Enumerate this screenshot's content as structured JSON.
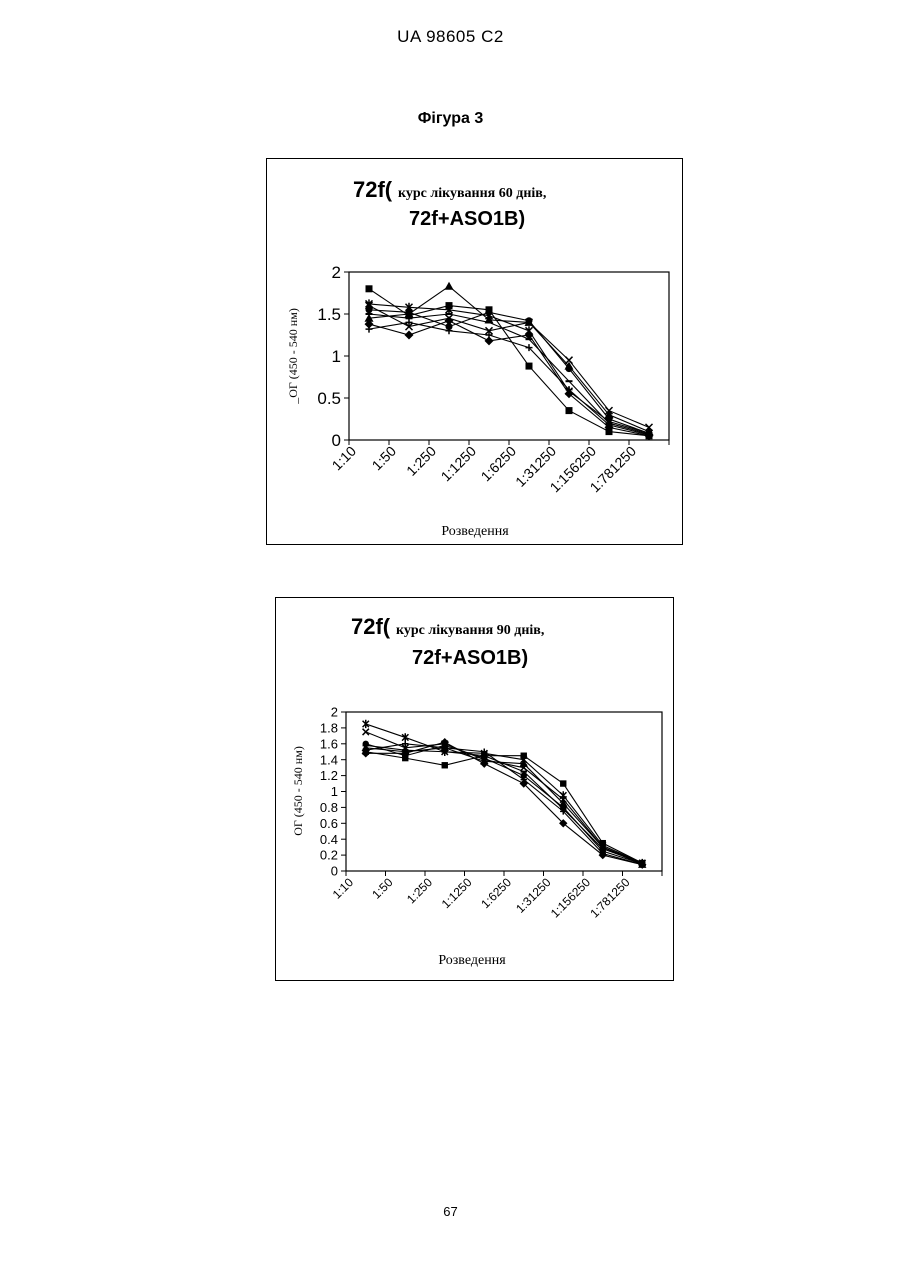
{
  "header": "UA   98605   C2",
  "figure_title": "Фігура 3",
  "page_number": "67",
  "chart_data": [
    {
      "type": "line",
      "title_main": "72f(",
      "title_rest": "курс лікування 60 днів,",
      "title_line2": "72f+ASO1B)",
      "xlabel": "Розведення",
      "ylabel": "_ОГ (450 - 540 нм)",
      "categories": [
        "1:10",
        "1:50",
        "1:250",
        "1:1250",
        "1:6250",
        "1:31250",
        "1:156250",
        "1:781250"
      ],
      "yticks": [
        "0",
        "0.5",
        "1",
        "1.5",
        "2"
      ],
      "ylim": [
        0,
        2
      ],
      "grid": false,
      "series": [
        {
          "marker": "square",
          "values": [
            1.8,
            1.48,
            1.6,
            1.55,
            0.88,
            0.35,
            0.1,
            0.05
          ]
        },
        {
          "marker": "triangle",
          "values": [
            1.45,
            1.5,
            1.83,
            1.43,
            1.4,
            0.88,
            0.3,
            0.1
          ]
        },
        {
          "marker": "x",
          "values": [
            1.6,
            1.35,
            1.45,
            1.3,
            1.4,
            0.95,
            0.35,
            0.15
          ]
        },
        {
          "marker": "star",
          "values": [
            1.62,
            1.58,
            1.55,
            1.48,
            1.3,
            0.58,
            0.22,
            0.08
          ]
        },
        {
          "marker": "diamond",
          "values": [
            1.38,
            1.25,
            1.42,
            1.18,
            1.25,
            0.55,
            0.15,
            0.05
          ]
        },
        {
          "marker": "circle",
          "values": [
            1.55,
            1.52,
            1.35,
            1.52,
            1.42,
            0.85,
            0.25,
            0.08
          ]
        },
        {
          "marker": "plus",
          "values": [
            1.32,
            1.4,
            1.3,
            1.25,
            1.1,
            0.6,
            0.18,
            0.06
          ]
        },
        {
          "marker": "dash",
          "values": [
            1.5,
            1.45,
            1.5,
            1.4,
            1.2,
            0.7,
            0.2,
            0.07
          ]
        }
      ]
    },
    {
      "type": "line",
      "title_main": "72f(",
      "title_rest": "курс лікування 90 днів,",
      "title_line2": "72f+ASO1B)",
      "xlabel": "Розведення",
      "ylabel": "ОГ (450 - 540 нм)",
      "categories": [
        "1:10",
        "1:50",
        "1:250",
        "1:1250",
        "1:6250",
        "1:31250",
        "1:156250",
        "1:781250"
      ],
      "yticks": [
        "0",
        "0.2",
        "0.4",
        "0.6",
        "0.8",
        "1",
        "1.2",
        "1.4",
        "1.6",
        "1.8",
        "2"
      ],
      "ylim": [
        0,
        2
      ],
      "grid": false,
      "series": [
        {
          "marker": "square",
          "values": [
            1.5,
            1.42,
            1.33,
            1.45,
            1.45,
            1.1,
            0.35,
            0.1
          ]
        },
        {
          "marker": "star",
          "values": [
            1.85,
            1.68,
            1.5,
            1.48,
            1.4,
            0.95,
            0.32,
            0.1
          ]
        },
        {
          "marker": "x",
          "values": [
            1.75,
            1.55,
            1.6,
            1.4,
            1.3,
            0.9,
            0.3,
            0.1
          ]
        },
        {
          "marker": "triangle",
          "values": [
            1.55,
            1.5,
            1.55,
            1.38,
            1.35,
            0.85,
            0.3,
            0.08
          ]
        },
        {
          "marker": "diamond",
          "values": [
            1.48,
            1.48,
            1.62,
            1.35,
            1.1,
            0.6,
            0.2,
            0.08
          ]
        },
        {
          "marker": "circle",
          "values": [
            1.6,
            1.45,
            1.58,
            1.42,
            1.2,
            0.8,
            0.25,
            0.09
          ]
        },
        {
          "marker": "plus",
          "values": [
            1.52,
            1.6,
            1.55,
            1.5,
            1.15,
            0.75,
            0.22,
            0.08
          ]
        },
        {
          "marker": "dash",
          "values": [
            1.58,
            1.52,
            1.5,
            1.45,
            1.25,
            0.78,
            0.28,
            0.1
          ]
        }
      ]
    }
  ]
}
